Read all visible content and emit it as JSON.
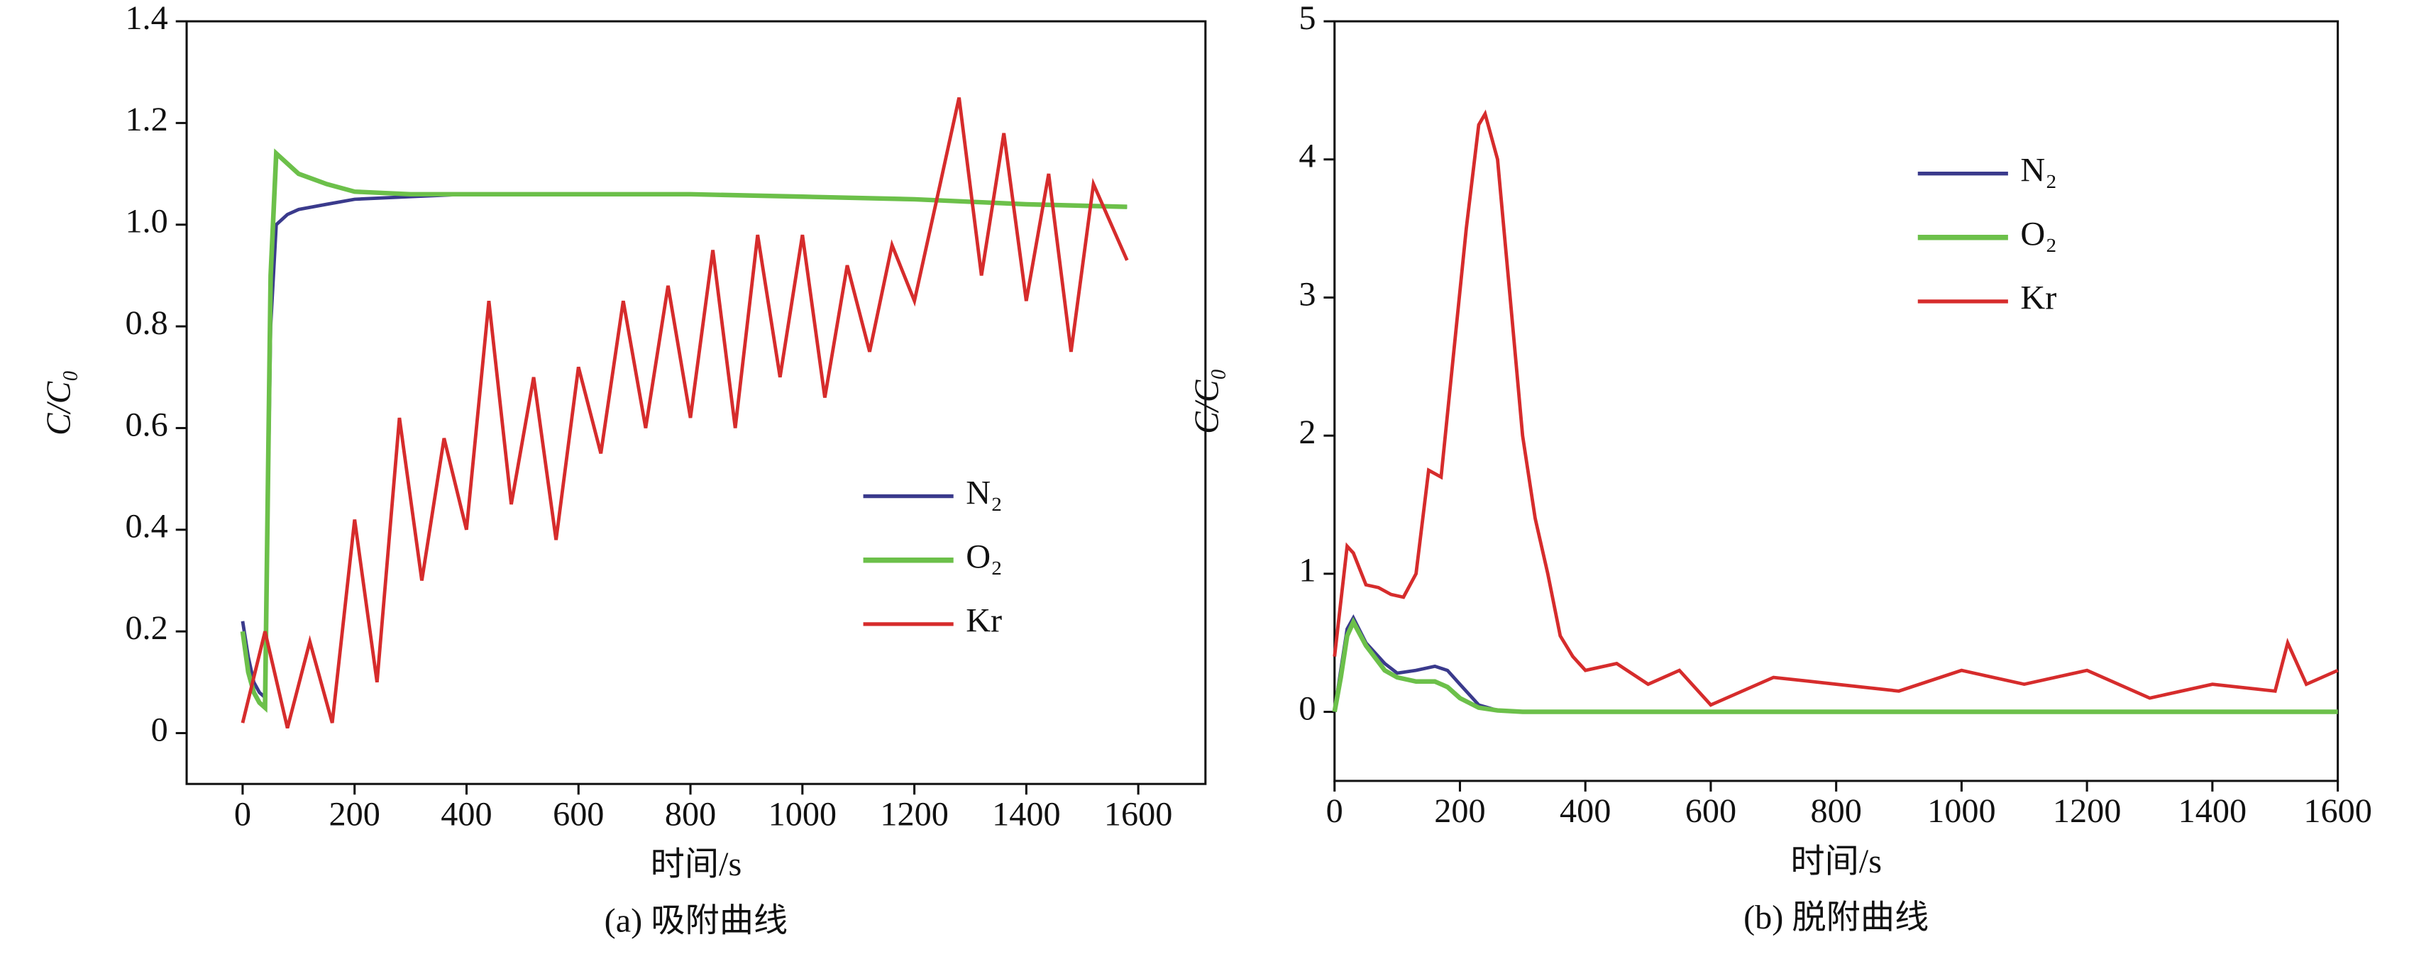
{
  "chart_data": [
    {
      "type": "line",
      "caption": "(a) 吸附曲线",
      "xlabel": "时间/s",
      "ylabel": "C/C₀",
      "xlim": [
        -100,
        1720
      ],
      "ylim": [
        -0.1,
        1.4
      ],
      "xticks": [
        0,
        200,
        400,
        600,
        800,
        1000,
        1200,
        1400,
        1600
      ],
      "yticks": [
        0,
        0.2,
        0.4,
        0.6,
        0.8,
        {
          "value": 1,
          "label": "1.0"
        },
        1.2,
        1.4
      ],
      "legend": "center right",
      "series": [
        {
          "name": "N₂",
          "color": "#3a3a8c",
          "x": [
            0,
            10,
            20,
            30,
            40,
            50,
            60,
            80,
            100,
            150,
            200,
            300,
            400,
            600,
            800,
            1000,
            1200,
            1400,
            1580
          ],
          "values": [
            0.22,
            0.15,
            0.1,
            0.08,
            0.07,
            0.8,
            1.0,
            1.02,
            1.03,
            1.04,
            1.05,
            1.055,
            1.06,
            1.06,
            1.06,
            1.055,
            1.05,
            1.04,
            1.035
          ]
        },
        {
          "name": "O₂",
          "color": "#6cc04a",
          "x": [
            0,
            10,
            20,
            30,
            40,
            50,
            60,
            80,
            100,
            150,
            200,
            300,
            400,
            600,
            800,
            1000,
            1200,
            1400,
            1580
          ],
          "values": [
            0.2,
            0.12,
            0.08,
            0.06,
            0.05,
            0.9,
            1.14,
            1.12,
            1.1,
            1.08,
            1.065,
            1.06,
            1.06,
            1.06,
            1.06,
            1.055,
            1.05,
            1.04,
            1.035
          ]
        },
        {
          "name": "Kr",
          "color": "#d62c2c",
          "x": [
            0,
            40,
            80,
            120,
            160,
            200,
            240,
            280,
            320,
            360,
            400,
            440,
            480,
            520,
            560,
            600,
            640,
            680,
            720,
            760,
            800,
            840,
            880,
            920,
            960,
            1000,
            1040,
            1080,
            1120,
            1160,
            1200,
            1240,
            1280,
            1320,
            1360,
            1400,
            1440,
            1480,
            1520,
            1560,
            1580
          ],
          "values": [
            0.02,
            0.2,
            0.01,
            0.18,
            0.02,
            0.42,
            0.1,
            0.62,
            0.3,
            0.58,
            0.4,
            0.85,
            0.45,
            0.7,
            0.38,
            0.72,
            0.55,
            0.85,
            0.6,
            0.88,
            0.62,
            0.95,
            0.6,
            0.98,
            0.7,
            0.98,
            0.66,
            0.92,
            0.75,
            0.96,
            0.85,
            1.05,
            1.25,
            0.9,
            1.18,
            0.85,
            1.1,
            0.75,
            1.08,
            0.98,
            0.93
          ]
        }
      ]
    },
    {
      "type": "line",
      "caption": "(b) 脱附曲线",
      "xlabel": "时间/s",
      "ylabel": "C/C₀",
      "xlim": [
        0,
        1600
      ],
      "ylim": [
        -0.5,
        5
      ],
      "xticks": [
        0,
        200,
        400,
        600,
        800,
        1000,
        1200,
        1400,
        1600
      ],
      "yticks": [
        0,
        1,
        2,
        3,
        4,
        5
      ],
      "legend": "upper center",
      "series": [
        {
          "name": "N₂",
          "color": "#3a3a8c",
          "x": [
            0,
            10,
            20,
            30,
            50,
            80,
            100,
            130,
            160,
            180,
            200,
            230,
            260,
            300,
            400,
            800,
            1200,
            1600
          ],
          "values": [
            0,
            0.3,
            0.6,
            0.68,
            0.5,
            0.35,
            0.28,
            0.3,
            0.33,
            0.3,
            0.2,
            0.05,
            0.01,
            0,
            0,
            0,
            0,
            0
          ]
        },
        {
          "name": "O₂",
          "color": "#6cc04a",
          "x": [
            0,
            10,
            20,
            30,
            50,
            80,
            100,
            130,
            160,
            180,
            200,
            230,
            260,
            300,
            400,
            800,
            1200,
            1600
          ],
          "values": [
            0,
            0.25,
            0.55,
            0.65,
            0.48,
            0.3,
            0.25,
            0.22,
            0.22,
            0.18,
            0.1,
            0.03,
            0.01,
            0,
            0,
            0,
            0,
            0
          ]
        },
        {
          "name": "Kr",
          "color": "#d62c2c",
          "x": [
            0,
            20,
            30,
            50,
            70,
            90,
            110,
            130,
            150,
            170,
            190,
            210,
            230,
            240,
            260,
            280,
            300,
            320,
            340,
            360,
            380,
            400,
            450,
            500,
            550,
            600,
            700,
            800,
            900,
            1000,
            1100,
            1200,
            1300,
            1400,
            1500,
            1520,
            1550,
            1600
          ],
          "values": [
            0.4,
            1.2,
            1.15,
            0.92,
            0.9,
            0.85,
            0.83,
            1.0,
            1.75,
            1.7,
            2.6,
            3.5,
            4.25,
            4.33,
            4.0,
            3.0,
            2.0,
            1.4,
            1.0,
            0.55,
            0.4,
            0.3,
            0.35,
            0.2,
            0.3,
            0.05,
            0.25,
            0.2,
            0.15,
            0.3,
            0.2,
            0.3,
            0.1,
            0.2,
            0.15,
            0.5,
            0.2,
            0.3
          ]
        }
      ]
    }
  ]
}
